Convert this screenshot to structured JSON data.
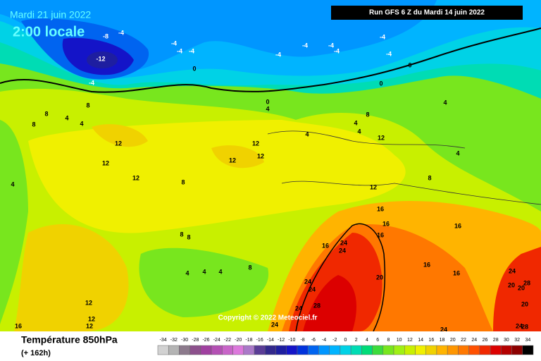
{
  "header": {
    "date": "Mardi 21 juin 2022",
    "time": "2:00 locale",
    "run": "Run GFS 6 Z du Mardi 14 juin 2022"
  },
  "map": {
    "copyright": "Copyright © 2022 Meteociel.fr",
    "labels": [
      -8,
      -4,
      -12,
      -4,
      -4,
      -4,
      -4,
      0,
      -4,
      -4,
      -4,
      -4,
      -4,
      -4,
      0,
      0,
      0,
      4,
      8,
      8,
      8,
      4,
      4,
      12,
      12,
      12,
      8,
      12,
      12,
      12,
      4,
      4,
      4,
      8,
      12,
      4,
      4,
      12,
      8,
      16,
      16,
      16,
      24,
      16,
      24,
      16,
      16,
      16,
      20,
      24,
      24,
      28,
      24,
      24,
      24,
      24,
      28,
      20,
      20,
      20,
      28,
      24,
      8,
      8,
      4,
      4,
      4,
      8,
      12,
      12,
      12,
      16,
      4
    ]
  },
  "footer": {
    "title": "Température 850hPa",
    "lead": "(+ 162h)"
  },
  "legend": {
    "values": [
      -34,
      -32,
      -30,
      -28,
      -26,
      -24,
      -22,
      -20,
      -18,
      -16,
      -14,
      -12,
      -10,
      -8,
      -6,
      -4,
      -2,
      0,
      2,
      4,
      6,
      8,
      10,
      12,
      14,
      16,
      18,
      20,
      22,
      24,
      26,
      28,
      30,
      32,
      34
    ],
    "colors": [
      "#d2d2d2",
      "#b4b4b4",
      "#8c7a8c",
      "#8c508c",
      "#a040a0",
      "#b450b4",
      "#c864c8",
      "#dc78dc",
      "#aa78c8",
      "#5a3c96",
      "#32288c",
      "#1e1ea0",
      "#1414c8",
      "#0032dc",
      "#0064f0",
      "#0096ff",
      "#00b4ff",
      "#00d2e6",
      "#00dcb4",
      "#00dc78",
      "#3cdc3c",
      "#78e61e",
      "#a0f014",
      "#c8f000",
      "#f0f000",
      "#f0d200",
      "#ffb400",
      "#ff9600",
      "#ff7800",
      "#ff5000",
      "#f02800",
      "#dc0000",
      "#b40000",
      "#8c0000",
      "#000000"
    ]
  }
}
